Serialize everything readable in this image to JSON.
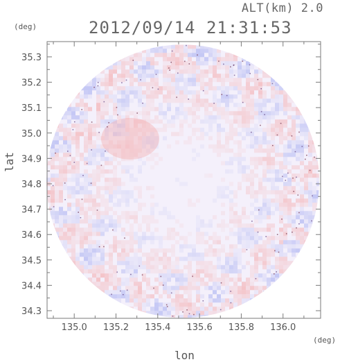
{
  "header": {
    "alt_label": "ALT(km) 2.0",
    "timestamp": "2012/09/14 21:31:53"
  },
  "chart_data": {
    "type": "heatmap",
    "title": "2012/09/14 21:31:53",
    "xlabel": "lon",
    "ylabel": "lat",
    "x_unit": "(deg)",
    "y_unit": "(deg)",
    "xlim": [
      134.87,
      136.18
    ],
    "ylim": [
      34.27,
      35.36
    ],
    "x_ticks": [
      135.0,
      135.2,
      135.4,
      135.6,
      135.8,
      136.0
    ],
    "x_tick_labels": [
      "135.0",
      "135.2",
      "135.4",
      "135.6",
      "135.8",
      "136.0"
    ],
    "y_ticks": [
      34.3,
      34.4,
      34.5,
      34.6,
      34.7,
      34.8,
      34.9,
      35.0,
      35.1,
      35.2,
      35.3
    ],
    "y_tick_labels": [
      "34.3",
      "34.4",
      "34.5",
      "34.6",
      "34.7",
      "34.8",
      "34.9",
      "35.0",
      "35.1",
      "35.2",
      "35.3"
    ],
    "field_center": [
      135.52,
      34.81
    ],
    "colors": {
      "positive": "#f4a0a0",
      "negative": "#9fa8f0",
      "neutral": "#f4f0fb",
      "frame": "#7a7a7a"
    }
  }
}
